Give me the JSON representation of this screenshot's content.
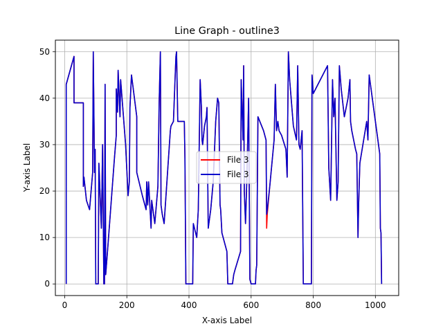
{
  "chart_data": {
    "type": "line",
    "title": "Line Graph - outline3",
    "xlabel": "X-axis Label",
    "ylabel": "Y-axis Label",
    "xlim": [
      -30,
      1075
    ],
    "ylim": [
      -2.5,
      52.5
    ],
    "xticks": [
      0,
      200,
      400,
      600,
      800,
      1000
    ],
    "yticks": [
      0,
      10,
      20,
      30,
      40,
      50
    ],
    "grid": true,
    "legend_position": "center",
    "series": [
      {
        "name": "File 3",
        "color": "#ff0000",
        "points": [
          [
            5,
            0
          ],
          [
            5,
            43
          ],
          [
            30,
            49
          ],
          [
            30,
            39
          ],
          [
            60,
            39
          ],
          [
            60,
            21
          ],
          [
            62,
            23
          ],
          [
            70,
            18
          ],
          [
            80,
            16
          ],
          [
            90,
            24
          ],
          [
            92,
            50
          ],
          [
            96,
            24
          ],
          [
            98,
            29
          ],
          [
            100,
            0
          ],
          [
            108,
            0
          ],
          [
            110,
            26
          ],
          [
            118,
            12
          ],
          [
            122,
            30
          ],
          [
            126,
            0
          ],
          [
            128,
            0
          ],
          [
            130,
            43
          ],
          [
            132,
            2
          ],
          [
            140,
            9
          ],
          [
            160,
            27
          ],
          [
            166,
            32
          ],
          [
            166,
            42
          ],
          [
            170,
            37
          ],
          [
            172,
            46
          ],
          [
            178,
            36
          ],
          [
            180,
            44
          ],
          [
            196,
            30
          ],
          [
            204,
            19
          ],
          [
            208,
            22
          ],
          [
            210,
            38
          ],
          [
            215,
            45
          ],
          [
            232,
            36
          ],
          [
            232,
            24
          ],
          [
            250,
            19
          ],
          [
            262,
            16
          ],
          [
            264,
            22
          ],
          [
            267,
            17
          ],
          [
            270,
            22
          ],
          [
            278,
            12
          ],
          [
            280,
            18
          ],
          [
            290,
            13
          ],
          [
            300,
            21
          ],
          [
            304,
            39
          ],
          [
            308,
            50
          ],
          [
            310,
            17
          ],
          [
            314,
            15
          ],
          [
            320,
            13
          ],
          [
            328,
            21
          ],
          [
            340,
            33
          ],
          [
            342,
            34
          ],
          [
            350,
            35
          ],
          [
            358,
            49
          ],
          [
            360,
            50
          ],
          [
            364,
            35
          ],
          [
            374,
            35
          ],
          [
            385,
            35
          ],
          [
            387,
            27
          ],
          [
            390,
            0
          ],
          [
            400,
            0
          ],
          [
            412,
            0
          ],
          [
            414,
            13
          ],
          [
            425,
            10
          ],
          [
            430,
            16
          ],
          [
            436,
            44
          ],
          [
            440,
            38
          ],
          [
            442,
            31
          ],
          [
            444,
            30
          ],
          [
            450,
            34
          ],
          [
            456,
            36
          ],
          [
            458,
            38
          ],
          [
            462,
            12
          ],
          [
            470,
            16
          ],
          [
            478,
            22
          ],
          [
            486,
            35
          ],
          [
            492,
            40
          ],
          [
            496,
            39
          ],
          [
            500,
            17
          ],
          [
            502,
            16
          ],
          [
            506,
            11
          ],
          [
            522,
            7
          ],
          [
            525,
            0
          ],
          [
            540,
            0
          ],
          [
            544,
            2
          ],
          [
            548,
            3
          ],
          [
            566,
            7
          ],
          [
            568,
            44
          ],
          [
            574,
            31
          ],
          [
            576,
            47
          ],
          [
            578,
            20
          ],
          [
            582,
            13
          ],
          [
            586,
            22
          ],
          [
            592,
            40
          ],
          [
            596,
            1
          ],
          [
            600,
            0
          ],
          [
            614,
            0
          ],
          [
            616,
            3
          ],
          [
            618,
            4
          ],
          [
            622,
            36
          ],
          [
            640,
            33
          ],
          [
            648,
            31
          ],
          [
            650,
            12
          ],
          [
            652,
            15
          ],
          [
            660,
            21
          ],
          [
            674,
            31
          ],
          [
            678,
            43
          ],
          [
            682,
            33
          ],
          [
            686,
            35
          ],
          [
            690,
            33
          ],
          [
            698,
            32
          ],
          [
            712,
            29
          ],
          [
            716,
            23
          ],
          [
            720,
            50
          ],
          [
            724,
            44
          ],
          [
            736,
            34
          ],
          [
            746,
            31
          ],
          [
            750,
            47
          ],
          [
            754,
            30
          ],
          [
            758,
            29
          ],
          [
            764,
            33
          ],
          [
            768,
            0
          ],
          [
            780,
            0
          ],
          [
            794,
            0
          ],
          [
            796,
            45
          ],
          [
            800,
            41
          ],
          [
            846,
            47
          ],
          [
            850,
            25
          ],
          [
            856,
            18
          ],
          [
            862,
            44
          ],
          [
            866,
            36
          ],
          [
            870,
            40
          ],
          [
            876,
            18
          ],
          [
            880,
            22
          ],
          [
            884,
            47
          ],
          [
            890,
            42
          ],
          [
            900,
            36
          ],
          [
            912,
            40
          ],
          [
            918,
            44
          ],
          [
            920,
            35
          ],
          [
            924,
            33
          ],
          [
            936,
            29
          ],
          [
            940,
            28
          ],
          [
            944,
            10
          ],
          [
            946,
            17
          ],
          [
            950,
            26
          ],
          [
            972,
            35
          ],
          [
            976,
            31
          ],
          [
            980,
            45
          ],
          [
            986,
            42
          ],
          [
            1000,
            35
          ],
          [
            1014,
            28
          ],
          [
            1016,
            12
          ],
          [
            1018,
            11
          ],
          [
            1020,
            0
          ]
        ]
      },
      {
        "name": "File 3",
        "color": "#0000cc",
        "points": [
          [
            5,
            0
          ],
          [
            5,
            43
          ],
          [
            30,
            49
          ],
          [
            30,
            39
          ],
          [
            60,
            39
          ],
          [
            60,
            21
          ],
          [
            62,
            23
          ],
          [
            70,
            18
          ],
          [
            80,
            16
          ],
          [
            90,
            24
          ],
          [
            92,
            50
          ],
          [
            96,
            24
          ],
          [
            98,
            29
          ],
          [
            100,
            0
          ],
          [
            108,
            0
          ],
          [
            110,
            26
          ],
          [
            118,
            12
          ],
          [
            122,
            30
          ],
          [
            126,
            0
          ],
          [
            128,
            0
          ],
          [
            130,
            43
          ],
          [
            132,
            2
          ],
          [
            140,
            9
          ],
          [
            160,
            27
          ],
          [
            166,
            32
          ],
          [
            166,
            42
          ],
          [
            170,
            37
          ],
          [
            172,
            46
          ],
          [
            178,
            36
          ],
          [
            180,
            44
          ],
          [
            196,
            30
          ],
          [
            204,
            19
          ],
          [
            208,
            22
          ],
          [
            210,
            38
          ],
          [
            215,
            45
          ],
          [
            232,
            36
          ],
          [
            232,
            24
          ],
          [
            250,
            19
          ],
          [
            262,
            16
          ],
          [
            264,
            22
          ],
          [
            267,
            17
          ],
          [
            270,
            22
          ],
          [
            278,
            12
          ],
          [
            280,
            18
          ],
          [
            290,
            13
          ],
          [
            300,
            21
          ],
          [
            304,
            39
          ],
          [
            308,
            50
          ],
          [
            310,
            17
          ],
          [
            314,
            15
          ],
          [
            320,
            13
          ],
          [
            328,
            21
          ],
          [
            340,
            33
          ],
          [
            342,
            34
          ],
          [
            350,
            35
          ],
          [
            358,
            49
          ],
          [
            360,
            50
          ],
          [
            364,
            35
          ],
          [
            374,
            35
          ],
          [
            385,
            35
          ],
          [
            387,
            27
          ],
          [
            390,
            0
          ],
          [
            400,
            0
          ],
          [
            412,
            0
          ],
          [
            414,
            13
          ],
          [
            425,
            10
          ],
          [
            430,
            16
          ],
          [
            436,
            44
          ],
          [
            440,
            38
          ],
          [
            442,
            31
          ],
          [
            444,
            30
          ],
          [
            450,
            34
          ],
          [
            456,
            36
          ],
          [
            458,
            38
          ],
          [
            462,
            12
          ],
          [
            470,
            16
          ],
          [
            478,
            22
          ],
          [
            486,
            35
          ],
          [
            492,
            40
          ],
          [
            496,
            39
          ],
          [
            500,
            17
          ],
          [
            502,
            16
          ],
          [
            506,
            11
          ],
          [
            522,
            7
          ],
          [
            525,
            0
          ],
          [
            540,
            0
          ],
          [
            544,
            2
          ],
          [
            548,
            3
          ],
          [
            566,
            7
          ],
          [
            568,
            44
          ],
          [
            574,
            31
          ],
          [
            576,
            47
          ],
          [
            578,
            20
          ],
          [
            582,
            13
          ],
          [
            586,
            22
          ],
          [
            592,
            40
          ],
          [
            596,
            1
          ],
          [
            600,
            0
          ],
          [
            614,
            0
          ],
          [
            616,
            3
          ],
          [
            618,
            4
          ],
          [
            622,
            36
          ],
          [
            640,
            33
          ],
          [
            648,
            31
          ],
          [
            650,
            15
          ],
          [
            652,
            16
          ],
          [
            660,
            21
          ],
          [
            674,
            31
          ],
          [
            678,
            43
          ],
          [
            682,
            33
          ],
          [
            686,
            35
          ],
          [
            690,
            33
          ],
          [
            698,
            32
          ],
          [
            712,
            29
          ],
          [
            716,
            23
          ],
          [
            720,
            50
          ],
          [
            724,
            44
          ],
          [
            736,
            34
          ],
          [
            746,
            31
          ],
          [
            750,
            47
          ],
          [
            754,
            30
          ],
          [
            758,
            29
          ],
          [
            764,
            33
          ],
          [
            768,
            0
          ],
          [
            780,
            0
          ],
          [
            794,
            0
          ],
          [
            796,
            45
          ],
          [
            800,
            41
          ],
          [
            846,
            47
          ],
          [
            850,
            25
          ],
          [
            856,
            18
          ],
          [
            862,
            44
          ],
          [
            866,
            36
          ],
          [
            870,
            40
          ],
          [
            876,
            18
          ],
          [
            880,
            22
          ],
          [
            884,
            47
          ],
          [
            890,
            42
          ],
          [
            900,
            36
          ],
          [
            912,
            40
          ],
          [
            918,
            44
          ],
          [
            920,
            35
          ],
          [
            924,
            33
          ],
          [
            936,
            29
          ],
          [
            940,
            28
          ],
          [
            944,
            10
          ],
          [
            946,
            17
          ],
          [
            950,
            26
          ],
          [
            972,
            35
          ],
          [
            976,
            31
          ],
          [
            980,
            45
          ],
          [
            986,
            42
          ],
          [
            1000,
            35
          ],
          [
            1014,
            28
          ],
          [
            1016,
            12
          ],
          [
            1018,
            11
          ],
          [
            1020,
            0
          ]
        ]
      }
    ]
  }
}
